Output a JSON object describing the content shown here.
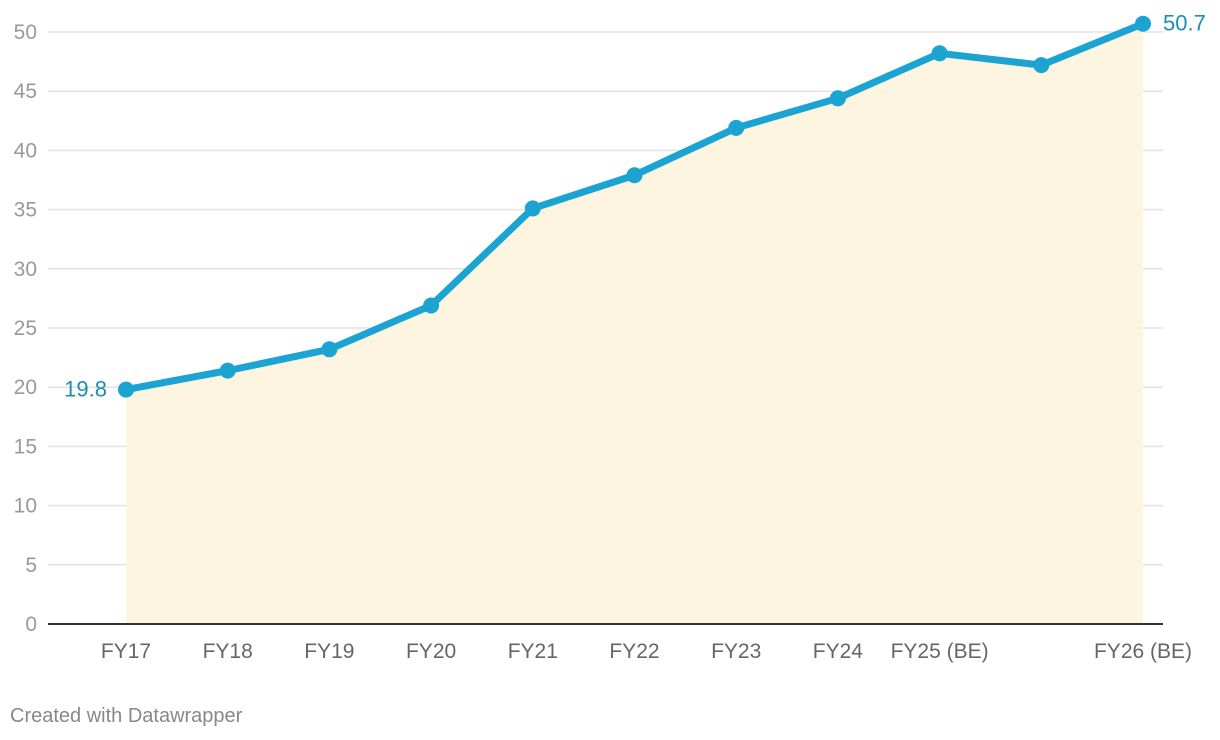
{
  "chart_data": {
    "type": "line",
    "categories": [
      "FY17",
      "FY18",
      "FY19",
      "FY20",
      "FY21",
      "FY22",
      "FY23",
      "FY24",
      "FY25 (BE)",
      "",
      "FY26 (BE)"
    ],
    "series": [
      {
        "values": [
          19.8,
          21.4,
          23.2,
          26.9,
          35.1,
          37.9,
          41.9,
          44.4,
          48.2,
          47.2,
          50.7
        ]
      }
    ],
    "ylim": [
      0,
      50
    ],
    "yticks": [
      0,
      5,
      10,
      15,
      20,
      25,
      30,
      35,
      40,
      45,
      50
    ],
    "grid": true,
    "area_fill": true,
    "labels": [
      {
        "index": 0,
        "text": "19.8"
      },
      {
        "index": 10,
        "text": "50.7"
      }
    ],
    "colors": {
      "line": "#1ba3d2",
      "area": "#fdf5e0",
      "label": "#1a8fb0",
      "grid": "#e3e3e3",
      "baseline": "#333333"
    }
  },
  "footer": {
    "credit": "Created with Datawrapper"
  }
}
